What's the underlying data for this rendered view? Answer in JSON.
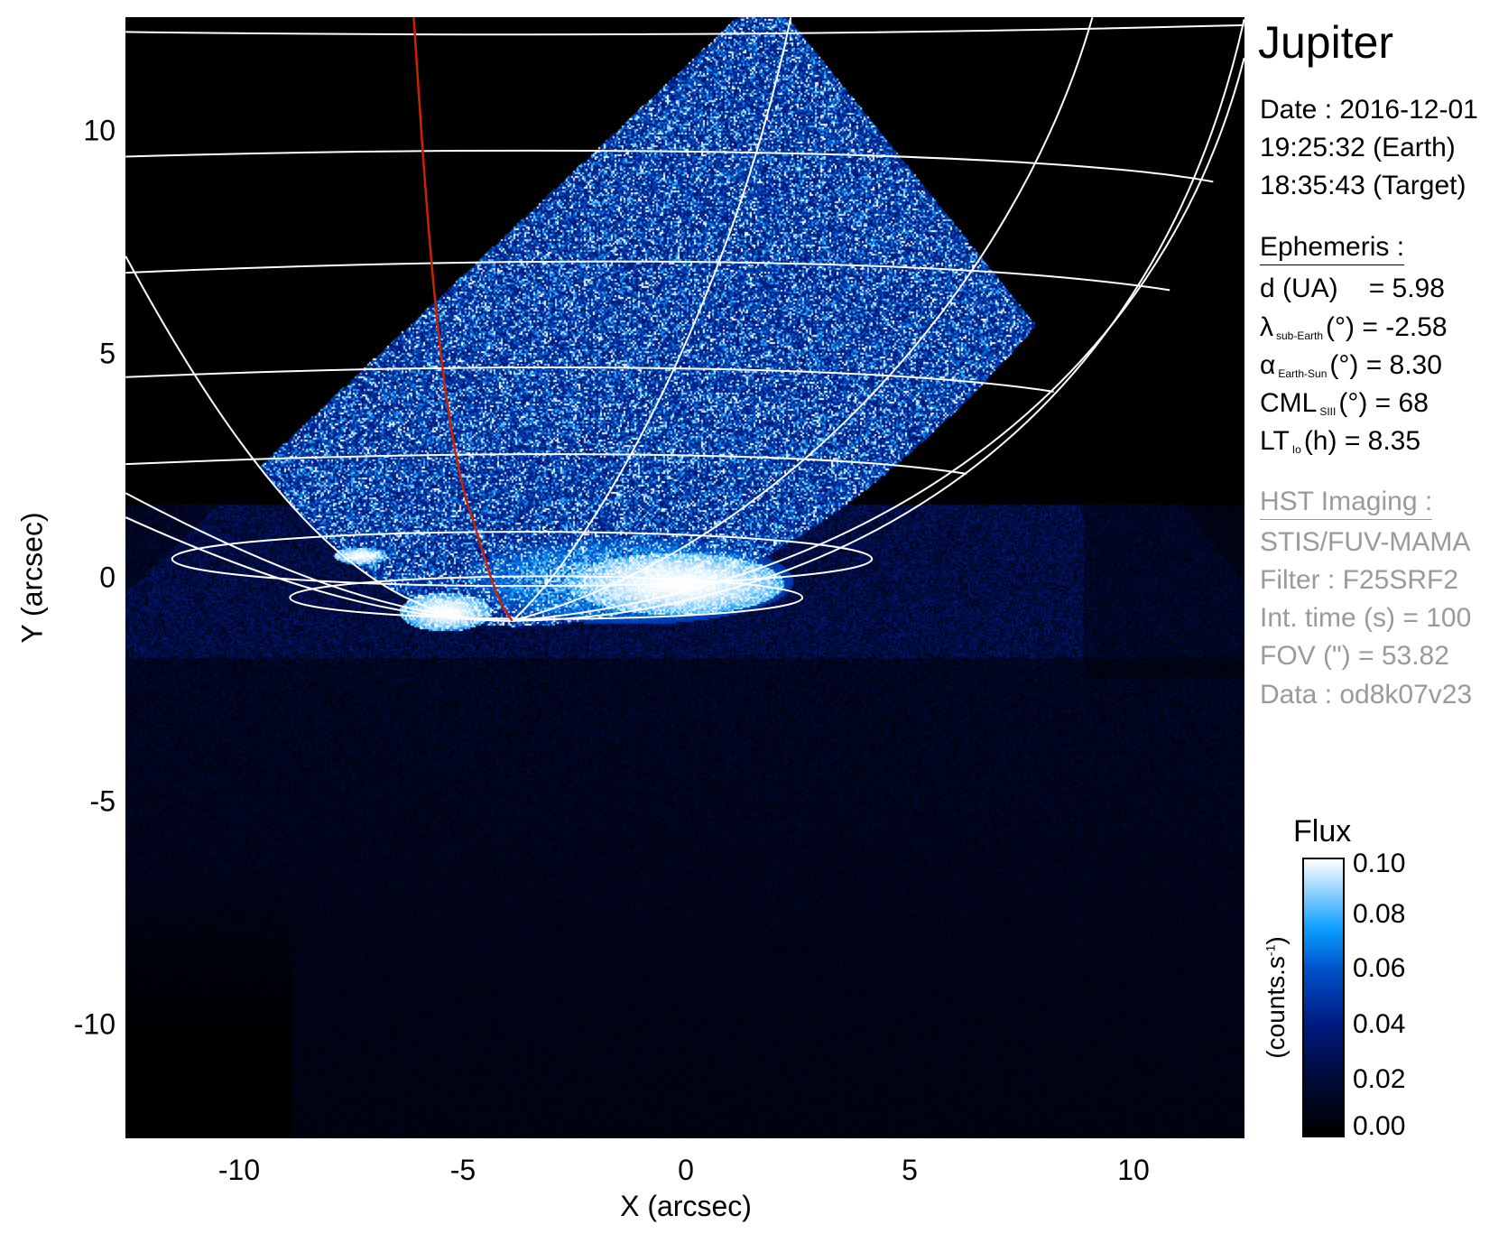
{
  "chart_data": {
    "type": "heatmap",
    "title": "Jupiter",
    "xlabel": "X (arcsec)",
    "ylabel": "Y (arcsec)",
    "xlim": [
      -12.5,
      12.5
    ],
    "ylim": [
      -12.5,
      12.5
    ],
    "x_ticks": [
      "-10",
      "-5",
      "0",
      "5",
      "10"
    ],
    "x_tick_values": [
      -10,
      -5,
      0,
      5,
      10
    ],
    "y_ticks": [
      "10",
      "5",
      "0",
      "-5",
      "-10"
    ],
    "y_tick_values": [
      10,
      5,
      0,
      -5,
      -10
    ],
    "colorbar": {
      "title": "Flux",
      "label": "(counts.s",
      "label_sup": "-1",
      "label_close": ")",
      "range": [
        0.0,
        0.1
      ],
      "ticks": [
        "0.10",
        "0.08",
        "0.06",
        "0.04",
        "0.02",
        "0.00"
      ],
      "tick_values": [
        0.1,
        0.08,
        0.06,
        0.04,
        0.02,
        0.0
      ],
      "colormap": [
        "#000000",
        "#001a80",
        "#0050c8",
        "#0aa0ff",
        "#8fd0ff",
        "#ffffff"
      ]
    },
    "overlay": {
      "grid_color": "#ffffff",
      "footprint_color": "#cc2200"
    }
  },
  "info": {
    "date": "Date : 2016-12-01",
    "time_earth": "19:25:32 (Earth)",
    "time_target": "18:35:43 (Target)",
    "ephemeris_title": "Ephemeris :",
    "d": {
      "label": "d (UA)",
      "value": "= 5.98"
    },
    "lambda": {
      "symbol": "λ",
      "sub": "sub-Earth",
      "rest": "(°) = -2.58"
    },
    "alpha": {
      "symbol": "α",
      "sub": "Earth-Sun",
      "rest": "(°) = 8.30"
    },
    "cml": {
      "symbol": "CML",
      "sub": "SIII",
      "rest": "(°) = 68"
    },
    "lt": {
      "symbol": "LT",
      "sub": "Io",
      "rest": "(h) = 8.35"
    },
    "hst_title": "HST Imaging :",
    "instrument": "STIS/FUV-MAMA",
    "filter": "Filter : F25SRF2",
    "int_time": "Int. time (s) = 100",
    "fov": "FOV (\") = 53.82",
    "data": "Data : od8k07v23"
  }
}
